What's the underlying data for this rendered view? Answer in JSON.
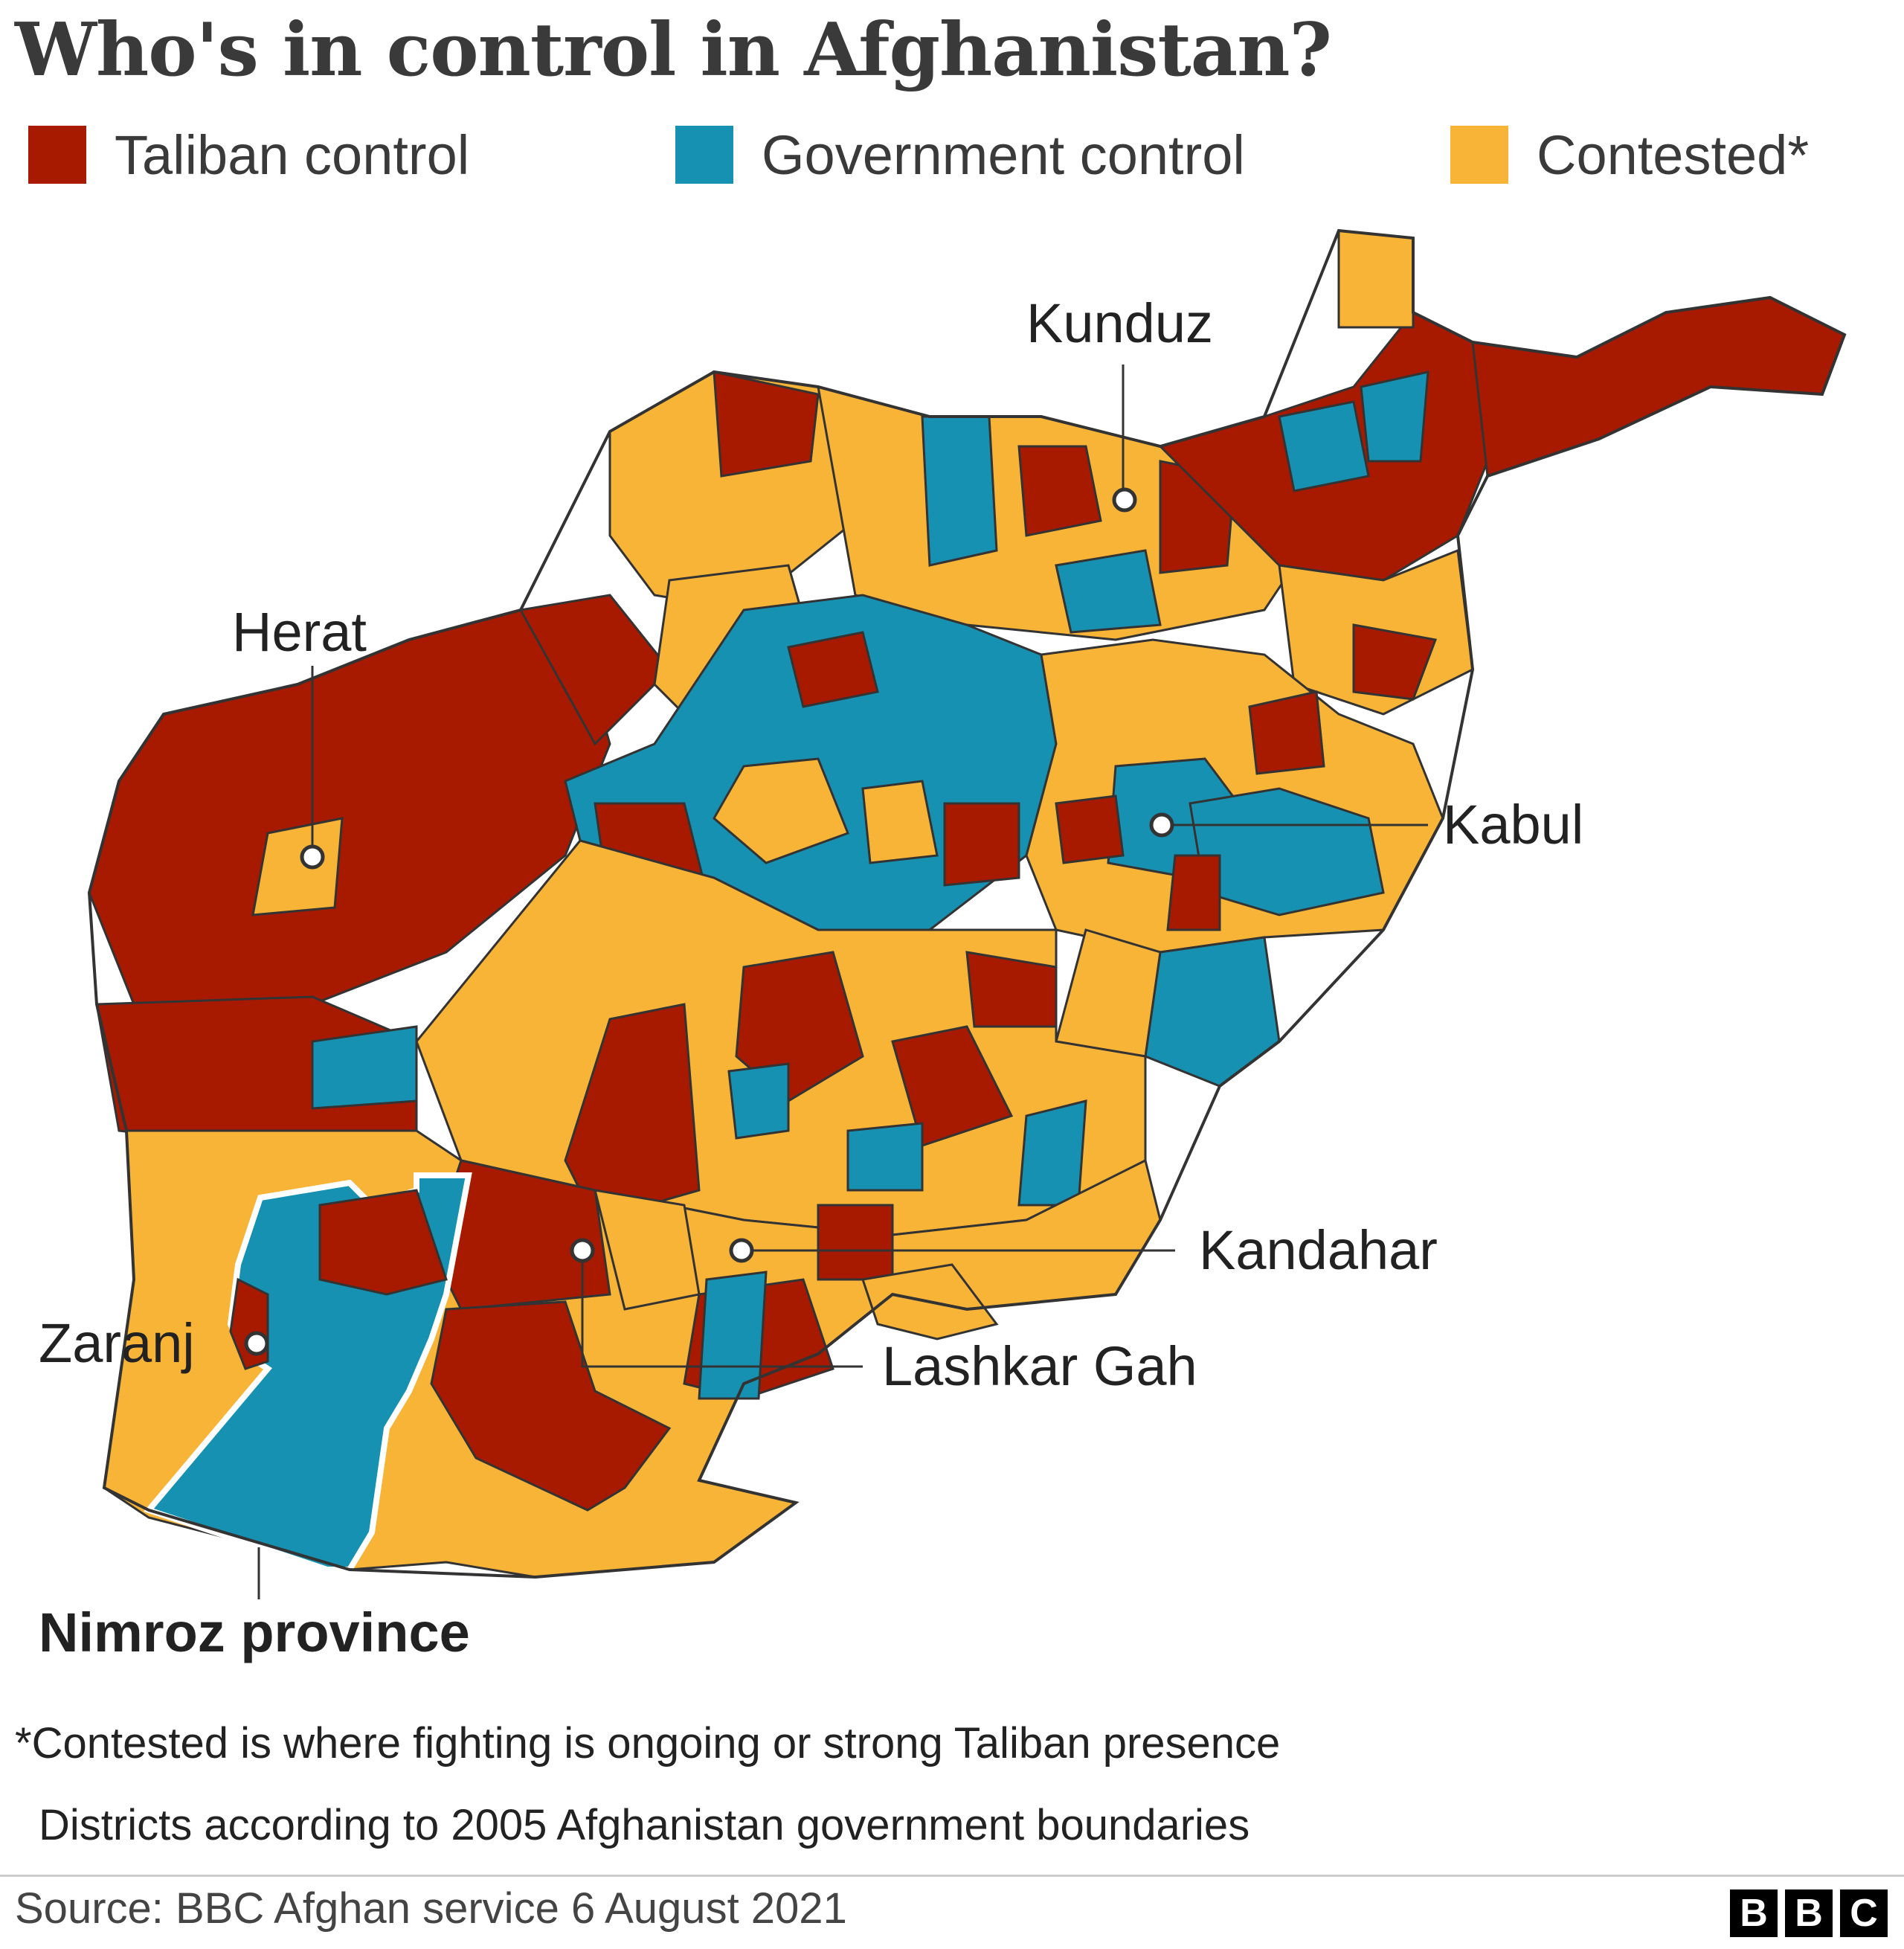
{
  "title": "Who's in control in Afghanistan?",
  "legend": [
    {
      "label": "Taliban control",
      "color": "#a81a00"
    },
    {
      "label": "Government control",
      "color": "#1791b1"
    },
    {
      "label": "Contested*",
      "color": "#f8b437"
    }
  ],
  "map": {
    "border_color": "#333333",
    "cities": [
      {
        "name": "Kunduz"
      },
      {
        "name": "Herat"
      },
      {
        "name": "Kabul"
      },
      {
        "name": "Kandahar"
      },
      {
        "name": "Zaranj"
      },
      {
        "name": "Lashkar Gah"
      }
    ],
    "highlight": {
      "name": "Nimroz province"
    }
  },
  "notes": [
    "*Contested is where fighting is ongoing or strong Taliban presence",
    "Districts according to 2005 Afghanistan government boundaries"
  ],
  "source": "Source: BBC Afghan service 6 August 2021",
  "logo": [
    "B",
    "B",
    "C"
  ]
}
